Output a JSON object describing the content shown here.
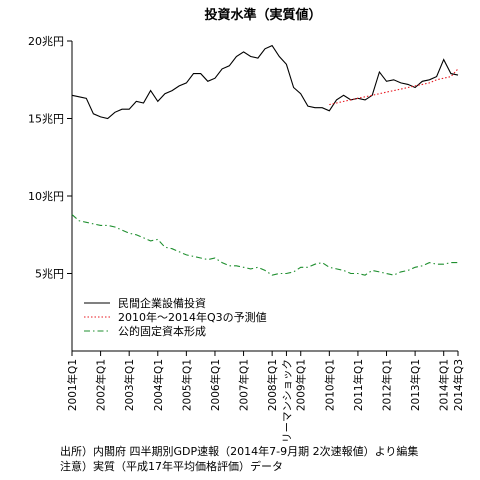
{
  "chart_data": {
    "type": "line",
    "title": "投資水準（実質値）",
    "ylim": [
      0,
      20
    ],
    "y_ticks": [
      {
        "value": 5,
        "label": "5兆円"
      },
      {
        "value": 10,
        "label": "10兆円"
      },
      {
        "value": 15,
        "label": "15兆円"
      },
      {
        "value": 20,
        "label": "20兆円"
      }
    ],
    "x_start": "2001Q1",
    "x_end": "2014Q3",
    "x_ticks": [
      {
        "q": 0,
        "label": "2001年Q1"
      },
      {
        "q": 4,
        "label": "2002年Q1"
      },
      {
        "q": 8,
        "label": "2003年Q1"
      },
      {
        "q": 12,
        "label": "2004年Q1"
      },
      {
        "q": 16,
        "label": "2005年Q1"
      },
      {
        "q": 20,
        "label": "2006年Q1"
      },
      {
        "q": 24,
        "label": "2007年Q1"
      },
      {
        "q": 28,
        "label": "2008年Q1"
      },
      {
        "q": 30,
        "label": "リーマンショック"
      },
      {
        "q": 32,
        "label": "2009年Q1"
      },
      {
        "q": 36,
        "label": "2010年Q1"
      },
      {
        "q": 40,
        "label": "2011年Q1"
      },
      {
        "q": 44,
        "label": "2012年Q1"
      },
      {
        "q": 48,
        "label": "2013年Q1"
      },
      {
        "q": 52,
        "label": "2014年Q1"
      },
      {
        "q": 54,
        "label": "2014年Q3"
      }
    ],
    "series": [
      {
        "name": "民間企業設備投資",
        "color": "#000000",
        "style": "solid",
        "values": [
          16.5,
          16.4,
          16.3,
          15.3,
          15.1,
          15.0,
          15.4,
          15.6,
          15.6,
          16.1,
          16.0,
          16.8,
          16.1,
          16.6,
          16.8,
          17.1,
          17.3,
          17.9,
          17.9,
          17.4,
          17.6,
          18.2,
          18.4,
          19.0,
          19.3,
          19.0,
          18.9,
          19.5,
          19.7,
          19.0,
          18.5,
          17.0,
          16.6,
          15.8,
          15.7,
          15.7,
          15.5,
          16.2,
          16.5,
          16.2,
          16.3,
          16.2,
          16.5,
          18.0,
          17.4,
          17.5,
          17.3,
          17.2,
          17.0,
          17.4,
          17.5,
          17.7,
          18.8,
          17.9,
          17.8
        ]
      },
      {
        "name": "2010年～2014年Q3の予測値",
        "color": "#e8171f",
        "style": "dotted",
        "start_q": 36,
        "values": [
          15.9,
          16.0,
          16.1,
          16.2,
          16.3,
          16.4,
          16.5,
          16.6,
          16.7,
          16.8,
          16.9,
          17.0,
          17.1,
          17.2,
          17.3,
          17.5,
          17.6,
          17.7,
          18.2
        ]
      },
      {
        "name": "公的固定資本形成",
        "color": "#1f8f2f",
        "style": "dashdot",
        "values": [
          8.8,
          8.4,
          8.3,
          8.2,
          8.1,
          8.1,
          8.0,
          7.8,
          7.6,
          7.5,
          7.3,
          7.1,
          7.2,
          6.7,
          6.6,
          6.4,
          6.2,
          6.1,
          6.0,
          5.9,
          6.0,
          5.7,
          5.5,
          5.5,
          5.4,
          5.3,
          5.4,
          5.2,
          4.9,
          5.0,
          5.0,
          5.1,
          5.4,
          5.4,
          5.6,
          5.7,
          5.4,
          5.3,
          5.2,
          5.0,
          5.0,
          4.9,
          5.2,
          5.1,
          5.0,
          4.9,
          5.1,
          5.2,
          5.4,
          5.5,
          5.7,
          5.6,
          5.6,
          5.7,
          5.7
        ]
      }
    ],
    "legend_position": "lower-left"
  },
  "footer": {
    "source": "出所）内閣府 四半期別GDP速報（2014年7-9月期 2次速報値）より編集",
    "note": "注意）実質（平成17年平均価格評価）データ"
  }
}
